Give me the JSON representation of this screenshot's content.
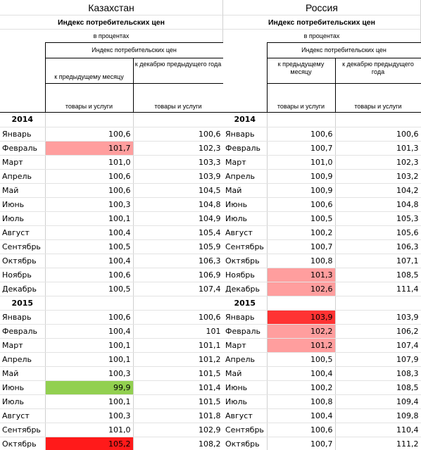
{
  "colors": {
    "light_red": "#ff9e9e",
    "red": "#ff3333",
    "bright_red": "#ff1a1a",
    "green": "#92d050"
  },
  "panels": [
    {
      "country": "Казахстан",
      "title": "Индекс потребительских цен",
      "unit": "в процентах",
      "group_header": "Индекс потребительских цен",
      "col1_header": "к предыдущему месяцу",
      "col2_header": "к декабрю предыдущего года",
      "col1_sub": "товары и услуги",
      "col2_sub": "товары и услуги",
      "rows": [
        {
          "label": "2014",
          "year": true,
          "v1": "",
          "v2": ""
        },
        {
          "label": "Январь",
          "v1": "100,6",
          "v2": "100,6"
        },
        {
          "label": "Февраль",
          "v1": "101,7",
          "v2": "102,3",
          "hl": "light_red"
        },
        {
          "label": "Март",
          "v1": "101,0",
          "v2": "103,3"
        },
        {
          "label": "Апрель",
          "v1": "100,6",
          "v2": "103,9"
        },
        {
          "label": "Май",
          "v1": "100,6",
          "v2": "104,5"
        },
        {
          "label": "Июнь",
          "v1": "100,3",
          "v2": "104,8"
        },
        {
          "label": "Июль",
          "v1": "100,1",
          "v2": "104,9"
        },
        {
          "label": "Август",
          "v1": "100,4",
          "v2": "105,4"
        },
        {
          "label": "Сентябрь",
          "v1": "100,5",
          "v2": "105,9"
        },
        {
          "label": "Октябрь",
          "v1": "100,4",
          "v2": "106,3"
        },
        {
          "label": "Ноябрь",
          "v1": "100,6",
          "v2": "106,9"
        },
        {
          "label": "Декабрь",
          "v1": "100,5",
          "v2": "107,4"
        },
        {
          "label": "2015",
          "year": true,
          "v1": "",
          "v2": ""
        },
        {
          "label": "Январь",
          "v1": "100,6",
          "v2": "100,6"
        },
        {
          "label": "Февраль",
          "v1": "100,4",
          "v2": "101"
        },
        {
          "label": "Март",
          "v1": "100,1",
          "v2": "101,1"
        },
        {
          "label": "Апрель",
          "v1": "100,1",
          "v2": "101,2"
        },
        {
          "label": "Май",
          "v1": "100,3",
          "v2": "101,5"
        },
        {
          "label": "Июнь",
          "v1": "99,9",
          "v2": "101,4",
          "hl": "green"
        },
        {
          "label": "Июль",
          "v1": "100,1",
          "v2": "101,5"
        },
        {
          "label": "Август",
          "v1": "100,3",
          "v2": "101,8"
        },
        {
          "label": "Сентябрь",
          "v1": "101,0",
          "v2": "102,9"
        },
        {
          "label": "Октябрь",
          "v1": "105,2",
          "v2": "108,2",
          "hl": "bright_red"
        }
      ]
    },
    {
      "country": "Россия",
      "title": "Индекс потребительских цен",
      "unit": "в процентах",
      "group_header": "Индекс потребительских цен",
      "col1_header": "к предыдущему месяцу",
      "col2_header": "к декабрю предыдущего года",
      "col1_sub": "товары и услуги",
      "col2_sub": "товары и услуги",
      "rows": [
        {
          "label": "2014",
          "year": true,
          "v1": "",
          "v2": ""
        },
        {
          "label": "Январь",
          "v1": "100,6",
          "v2": "100,6"
        },
        {
          "label": "Февраль",
          "v1": "100,7",
          "v2": "101,3"
        },
        {
          "label": "Март",
          "v1": "101,0",
          "v2": "102,3"
        },
        {
          "label": "Апрель",
          "v1": "100,9",
          "v2": "103,2"
        },
        {
          "label": "Май",
          "v1": "100,9",
          "v2": "104,2"
        },
        {
          "label": "Июнь",
          "v1": "100,6",
          "v2": "104,8"
        },
        {
          "label": "Июль",
          "v1": "100,5",
          "v2": "105,3"
        },
        {
          "label": "Август",
          "v1": "100,2",
          "v2": "105,6"
        },
        {
          "label": "Сентябрь",
          "v1": "100,7",
          "v2": "106,3"
        },
        {
          "label": "Октябрь",
          "v1": "100,8",
          "v2": "107,1"
        },
        {
          "label": "Ноябрь",
          "v1": "101,3",
          "v2": "108,5",
          "hl": "light_red"
        },
        {
          "label": "Декабрь",
          "v1": "102,6",
          "v2": "111,4",
          "hl": "light_red"
        },
        {
          "label": "2015",
          "year": true,
          "v1": "",
          "v2": ""
        },
        {
          "label": "Январь",
          "v1": "103,9",
          "v2": "103,9",
          "hl": "red"
        },
        {
          "label": "Февраль",
          "v1": "102,2",
          "v2": "106,2",
          "hl": "light_red"
        },
        {
          "label": "Март",
          "v1": "101,2",
          "v2": "107,4",
          "hl": "light_red"
        },
        {
          "label": "Апрель",
          "v1": "100,5",
          "v2": "107,9"
        },
        {
          "label": "Май",
          "v1": "100,4",
          "v2": "108,3"
        },
        {
          "label": "Июнь",
          "v1": "100,2",
          "v2": "108,5"
        },
        {
          "label": "Июль",
          "v1": "100,8",
          "v2": "109,4"
        },
        {
          "label": "Август",
          "v1": "100,4",
          "v2": "109,8"
        },
        {
          "label": "Сентябрь",
          "v1": "100,6",
          "v2": "110,4"
        },
        {
          "label": "Октябрь",
          "v1": "100,7",
          "v2": "111,2"
        }
      ]
    }
  ]
}
